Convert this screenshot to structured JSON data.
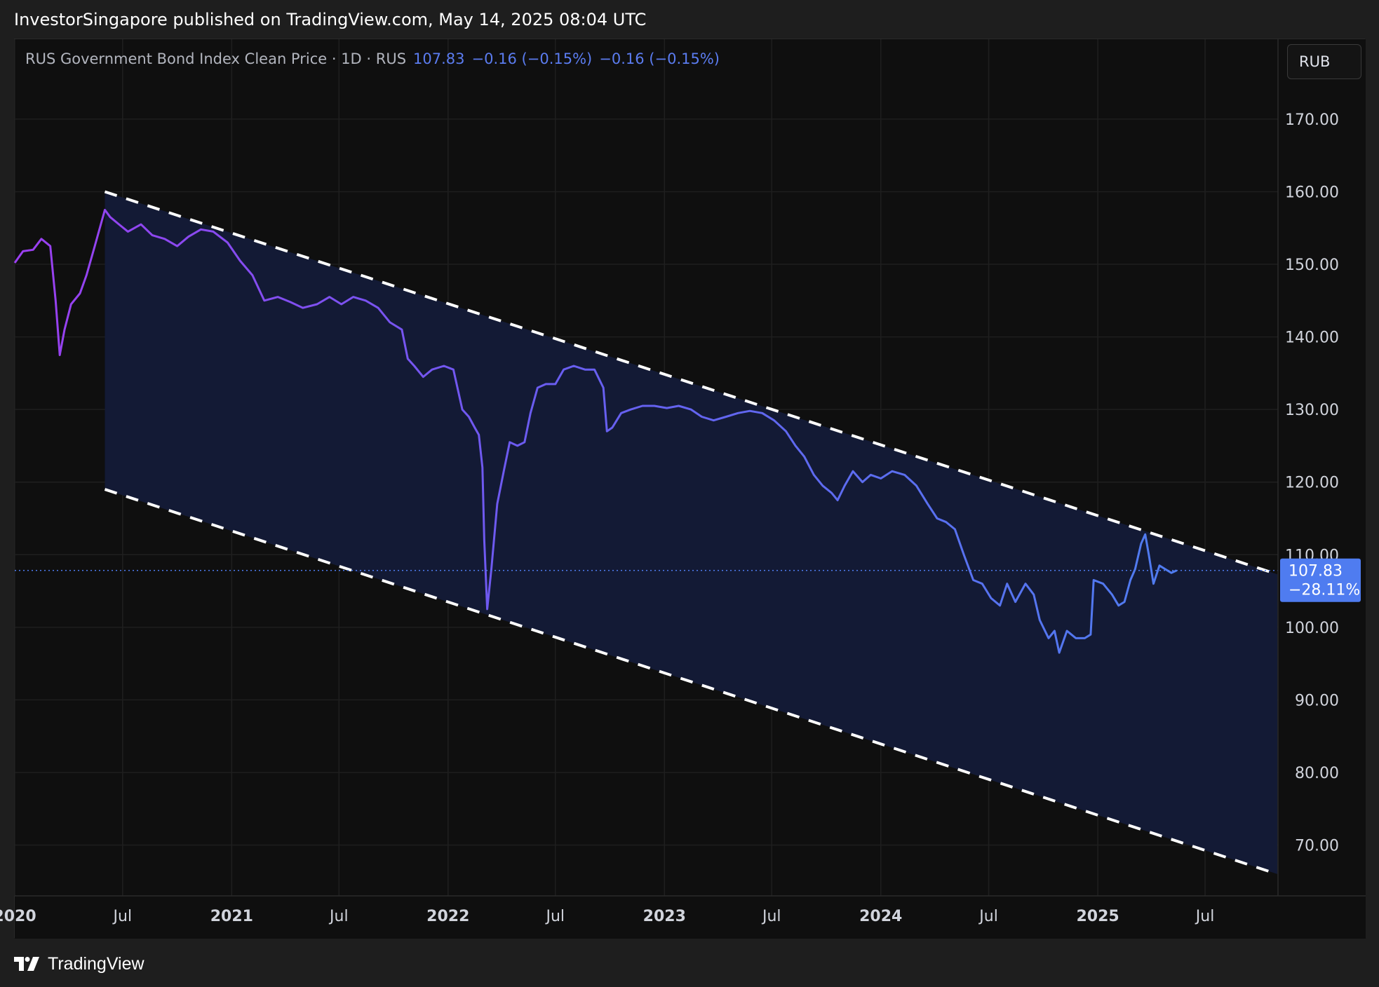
{
  "header": {
    "publisher_line": "InvestorSingapore published on TradingView.com, May 14, 2025 08:04 UTC"
  },
  "legend": {
    "name": "RUS Government Bond Index Clean Price · 1D · RUS",
    "last": "107.83",
    "change1": "−0.16 (−0.15%)",
    "change2": "−0.16 (−0.15%)"
  },
  "currency_button": "RUB",
  "price_label": {
    "value": "107.83",
    "change": "−28.11%"
  },
  "footer": {
    "logo_text": "TradingView",
    "logo_icon": "tradingview-logo-icon"
  },
  "colors": {
    "background": "#0f0f0f",
    "grid": "#1f1f1f",
    "channel_fill": "#131a35",
    "line_start": "#9b3ff0",
    "line_mid": "#6a5cf0",
    "line_end": "#4f7cf0",
    "price_label_bg": "#4f7cf0",
    "dashed": "#ffffff"
  },
  "chart_data": {
    "type": "line",
    "title": "RUS Government Bond Index Clean Price · 1D · RUS",
    "xlabel": "",
    "ylabel": "",
    "currency": "RUB",
    "ylim": [
      63,
      181
    ],
    "xlim": [
      "2020-01-01",
      "2025-11-01"
    ],
    "y_ticks": [
      "170.00",
      "160.00",
      "150.00",
      "140.00",
      "130.00",
      "120.00",
      "110.00",
      "100.00",
      "90.00",
      "80.00",
      "70.00"
    ],
    "y_tick_values": [
      170,
      160,
      150,
      140,
      130,
      120,
      110,
      100,
      90,
      80,
      70
    ],
    "x_ticks": [
      {
        "label": "2020",
        "date": "2020-01-01",
        "bold": true
      },
      {
        "label": "Jul",
        "date": "2020-07-01",
        "bold": false
      },
      {
        "label": "2021",
        "date": "2021-01-01",
        "bold": true
      },
      {
        "label": "Jul",
        "date": "2021-07-01",
        "bold": false
      },
      {
        "label": "2022",
        "date": "2022-01-01",
        "bold": true
      },
      {
        "label": "Jul",
        "date": "2022-07-01",
        "bold": false
      },
      {
        "label": "2023",
        "date": "2023-01-01",
        "bold": true
      },
      {
        "label": "Jul",
        "date": "2023-07-01",
        "bold": false
      },
      {
        "label": "2024",
        "date": "2024-01-01",
        "bold": true
      },
      {
        "label": "Jul",
        "date": "2024-07-01",
        "bold": false
      },
      {
        "label": "2025",
        "date": "2025-01-01",
        "bold": true
      },
      {
        "label": "Jul",
        "date": "2025-07-01",
        "bold": false
      }
    ],
    "grid": true,
    "last_value": 107.83,
    "series": [
      {
        "values": [
          [
            "2020-01-01",
            150.2
          ],
          [
            "2020-01-15",
            151.8
          ],
          [
            "2020-02-01",
            152.0
          ],
          [
            "2020-02-15",
            153.5
          ],
          [
            "2020-03-01",
            152.5
          ],
          [
            "2020-03-10",
            145.0
          ],
          [
            "2020-03-17",
            137.5
          ],
          [
            "2020-03-25",
            141.0
          ],
          [
            "2020-04-05",
            144.5
          ],
          [
            "2020-04-20",
            146.0
          ],
          [
            "2020-05-01",
            148.5
          ],
          [
            "2020-05-15",
            152.5
          ],
          [
            "2020-06-01",
            157.5
          ],
          [
            "2020-06-10",
            156.5
          ],
          [
            "2020-06-25",
            155.5
          ],
          [
            "2020-07-10",
            154.5
          ],
          [
            "2020-08-01",
            155.5
          ],
          [
            "2020-08-20",
            154.0
          ],
          [
            "2020-09-10",
            153.5
          ],
          [
            "2020-10-01",
            152.5
          ],
          [
            "2020-10-20",
            153.8
          ],
          [
            "2020-11-10",
            154.8
          ],
          [
            "2020-12-01",
            154.5
          ],
          [
            "2020-12-25",
            153.0
          ],
          [
            "2021-01-15",
            150.5
          ],
          [
            "2021-02-05",
            148.5
          ],
          [
            "2021-02-25",
            145.0
          ],
          [
            "2021-03-20",
            145.5
          ],
          [
            "2021-04-10",
            144.8
          ],
          [
            "2021-05-01",
            144.0
          ],
          [
            "2021-05-25",
            144.5
          ],
          [
            "2021-06-15",
            145.5
          ],
          [
            "2021-07-05",
            144.5
          ],
          [
            "2021-07-25",
            145.5
          ],
          [
            "2021-08-15",
            145.0
          ],
          [
            "2021-09-05",
            144.0
          ],
          [
            "2021-09-25",
            142.0
          ],
          [
            "2021-10-15",
            141.0
          ],
          [
            "2021-10-25",
            137.0
          ],
          [
            "2021-11-05",
            136.0
          ],
          [
            "2021-11-20",
            134.5
          ],
          [
            "2021-12-05",
            135.5
          ],
          [
            "2021-12-25",
            136.0
          ],
          [
            "2022-01-10",
            135.5
          ],
          [
            "2022-01-25",
            130.0
          ],
          [
            "2022-02-05",
            129.0
          ],
          [
            "2022-02-15",
            127.5
          ],
          [
            "2022-02-22",
            126.5
          ],
          [
            "2022-02-28",
            122.0
          ],
          [
            "2022-03-03",
            112.0
          ],
          [
            "2022-03-08",
            102.5
          ],
          [
            "2022-03-15",
            108.0
          ],
          [
            "2022-03-25",
            117.0
          ],
          [
            "2022-04-05",
            121.5
          ],
          [
            "2022-04-15",
            125.5
          ],
          [
            "2022-04-28",
            125.0
          ],
          [
            "2022-05-10",
            125.5
          ],
          [
            "2022-05-20",
            129.5
          ],
          [
            "2022-06-01",
            133.0
          ],
          [
            "2022-06-15",
            133.5
          ],
          [
            "2022-07-01",
            133.5
          ],
          [
            "2022-07-15",
            135.5
          ],
          [
            "2022-08-01",
            136.0
          ],
          [
            "2022-08-20",
            135.5
          ],
          [
            "2022-09-05",
            135.5
          ],
          [
            "2022-09-20",
            133.0
          ],
          [
            "2022-09-26",
            127.0
          ],
          [
            "2022-10-05",
            127.5
          ],
          [
            "2022-10-20",
            129.5
          ],
          [
            "2022-11-05",
            130.0
          ],
          [
            "2022-11-25",
            130.5
          ],
          [
            "2022-12-15",
            130.5
          ],
          [
            "2023-01-05",
            130.2
          ],
          [
            "2023-01-25",
            130.5
          ],
          [
            "2023-02-15",
            130.0
          ],
          [
            "2023-03-05",
            129.0
          ],
          [
            "2023-03-25",
            128.5
          ],
          [
            "2023-04-15",
            129.0
          ],
          [
            "2023-05-05",
            129.5
          ],
          [
            "2023-05-25",
            129.8
          ],
          [
            "2023-06-15",
            129.5
          ],
          [
            "2023-07-05",
            128.5
          ],
          [
            "2023-07-25",
            127.0
          ],
          [
            "2023-08-10",
            125.0
          ],
          [
            "2023-08-25",
            123.5
          ],
          [
            "2023-09-10",
            121.0
          ],
          [
            "2023-09-25",
            119.5
          ],
          [
            "2023-10-10",
            118.5
          ],
          [
            "2023-10-20",
            117.5
          ],
          [
            "2023-11-01",
            119.5
          ],
          [
            "2023-11-15",
            121.5
          ],
          [
            "2023-12-01",
            120.0
          ],
          [
            "2023-12-15",
            121.0
          ],
          [
            "2024-01-01",
            120.5
          ],
          [
            "2024-01-20",
            121.5
          ],
          [
            "2024-02-10",
            121.0
          ],
          [
            "2024-03-01",
            119.5
          ],
          [
            "2024-03-20",
            117.0
          ],
          [
            "2024-04-05",
            115.0
          ],
          [
            "2024-04-20",
            114.5
          ],
          [
            "2024-05-05",
            113.5
          ],
          [
            "2024-05-20",
            110.0
          ],
          [
            "2024-06-05",
            106.5
          ],
          [
            "2024-06-20",
            106.0
          ],
          [
            "2024-07-05",
            104.0
          ],
          [
            "2024-07-20",
            103.0
          ],
          [
            "2024-08-01",
            106.0
          ],
          [
            "2024-08-15",
            103.5
          ],
          [
            "2024-09-01",
            106.0
          ],
          [
            "2024-09-15",
            104.5
          ],
          [
            "2024-09-25",
            101.0
          ],
          [
            "2024-10-10",
            98.5
          ],
          [
            "2024-10-20",
            99.5
          ],
          [
            "2024-10-28",
            96.5
          ],
          [
            "2024-11-10",
            99.5
          ],
          [
            "2024-11-25",
            98.5
          ],
          [
            "2024-12-10",
            98.5
          ],
          [
            "2024-12-20",
            99.0
          ],
          [
            "2024-12-25",
            106.5
          ],
          [
            "2025-01-10",
            106.0
          ],
          [
            "2025-01-25",
            104.5
          ],
          [
            "2025-02-05",
            103.0
          ],
          [
            "2025-02-15",
            103.5
          ],
          [
            "2025-02-25",
            106.5
          ],
          [
            "2025-03-05",
            108.0
          ],
          [
            "2025-03-15",
            111.5
          ],
          [
            "2025-03-22",
            112.8
          ],
          [
            "2025-03-28",
            110.0
          ],
          [
            "2025-04-05",
            106.0
          ],
          [
            "2025-04-15",
            108.5
          ],
          [
            "2025-04-25",
            108.0
          ],
          [
            "2025-05-05",
            107.5
          ],
          [
            "2025-05-14",
            107.83
          ]
        ]
      }
    ],
    "channel": {
      "upper": {
        "start": [
          "2020-06-01",
          160.0
        ],
        "end": [
          "2025-10-31",
          107.3
        ]
      },
      "lower": {
        "start": [
          "2020-06-01",
          119.0
        ],
        "end": [
          "2025-10-31",
          66.0
        ]
      }
    }
  }
}
